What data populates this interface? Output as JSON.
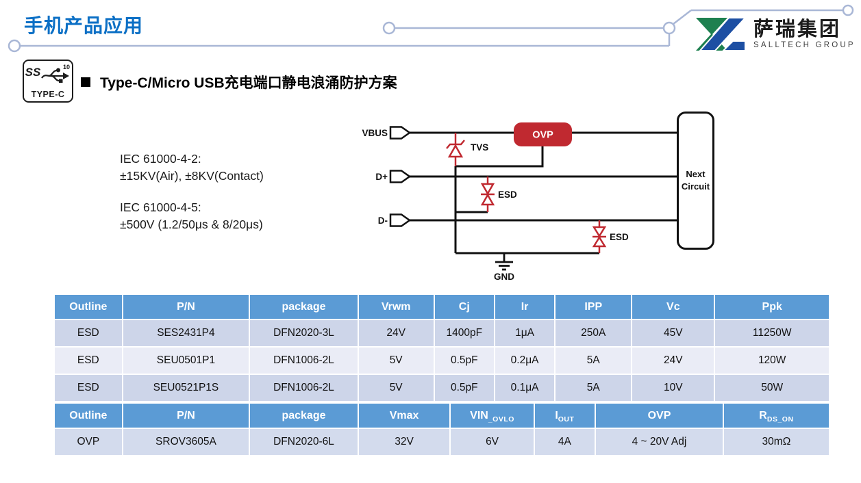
{
  "header": {
    "title": "手机产品应用",
    "logo_cn": "萨瑞集团",
    "logo_en": "SALLTECH GROUP"
  },
  "section": {
    "title": "Type-C/Micro USB充电端口静电浪涌防护方案",
    "badge_ss": "SS",
    "badge_ten": "10",
    "badge_label": "TYPE-C"
  },
  "specs": {
    "line1": "IEC 61000-4-2:",
    "line2": "±15KV(Air), ±8KV(Contact)",
    "line3": "IEC 61000-4-5:",
    "line4": "±500V  (1.2/50μs & 8/20μs)"
  },
  "circuit": {
    "vbus": "VBUS",
    "dplus": "D+",
    "dminus": "D-",
    "tvs": "TVS",
    "esd1": "ESD",
    "esd2": "ESD",
    "ovp": "OVP",
    "gnd": "GND",
    "next1": "Next",
    "next2": "Circuit"
  },
  "table1": {
    "headers": [
      "Outline",
      "P/N",
      "package",
      "Vrwm",
      "Cj",
      "Ir",
      "IPP",
      "Vc",
      "Ppk"
    ],
    "widths": [
      8.8,
      16.4,
      14.0,
      9.8,
      7.8,
      7.8,
      9.9,
      10.7,
      14.8
    ],
    "rows": [
      [
        "ESD",
        "SES2431P4",
        "DFN2020-3L",
        "24V",
        "1400pF",
        "1μA",
        "250A",
        "45V",
        "11250W"
      ],
      [
        "ESD",
        "SEU0501P1",
        "DFN1006-2L",
        "5V",
        "0.5pF",
        "0.2μA",
        "5A",
        "24V",
        "120W"
      ],
      [
        "ESD",
        "SEU0521P1S",
        "DFN1006-2L",
        "5V",
        "0.5pF",
        "0.1μA",
        "5A",
        "10V",
        "50W"
      ]
    ]
  },
  "table2": {
    "headers": [
      {
        "t": "Outline"
      },
      {
        "t": "P/N"
      },
      {
        "t": "package"
      },
      {
        "t": "Vmax"
      },
      {
        "t": "VIN",
        "sub": "_OVLO"
      },
      {
        "t": "I",
        "sub": "OUT"
      },
      {
        "t": "OVP"
      },
      {
        "t": "R",
        "sub": "DS_ON"
      }
    ],
    "widths": [
      8.8,
      16.4,
      14.0,
      11.9,
      10.8,
      7.9,
      16.5,
      13.7
    ],
    "rows": [
      [
        "OVP",
        "SROV3605A",
        "DFN2020-6L",
        "32V",
        "6V",
        "4A",
        "4 ~ 20V Adj",
        "30mΩ"
      ]
    ]
  },
  "colors": {
    "title_blue": "#0b6fc5",
    "header_bg": "#5b9bd5",
    "row_dark": "#cdd5e9",
    "row_light": "#eaecf6",
    "row_last": "#d3dbed",
    "accent_red": "#c02930",
    "trace": "#a9b7d6",
    "logo_green": "#1e8050",
    "logo_blue": "#1d4fa3"
  }
}
